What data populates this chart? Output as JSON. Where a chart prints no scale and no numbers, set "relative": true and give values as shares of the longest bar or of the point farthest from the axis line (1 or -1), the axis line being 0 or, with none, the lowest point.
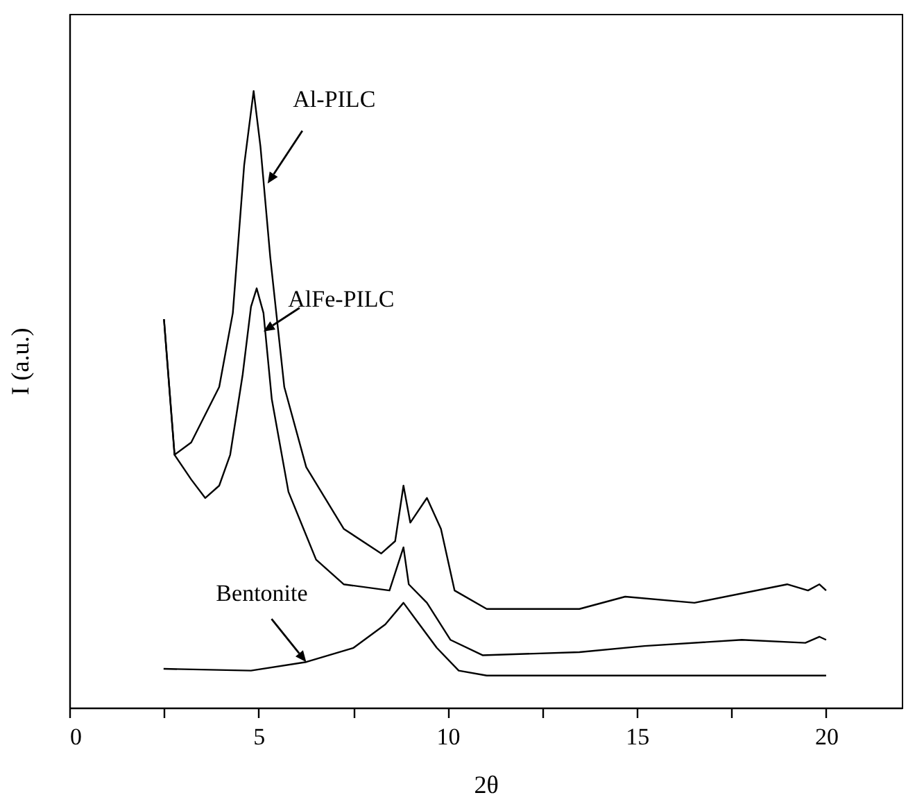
{
  "chart_data": {
    "type": "line",
    "relative": true,
    "xlabel": "2θ",
    "ylabel": "I (a.u.)",
    "xlim": [
      0,
      22
    ],
    "xticks": [
      0,
      {
        "value": 2.5,
        "label": null
      },
      5,
      {
        "value": 7.5,
        "label": null
      },
      10,
      {
        "value": 12.5,
        "label": null
      },
      15,
      {
        "value": 17.5,
        "label": null
      },
      20
    ],
    "grid": false,
    "marker": "none",
    "line_style": "solid",
    "series": [
      {
        "color": "#000000",
        "x": [
          2.5,
          2.78,
          3.22,
          3.96,
          4.32,
          4.62,
          4.87,
          5.05,
          5.31,
          5.68,
          6.26,
          7.25,
          8.24,
          8.61,
          8.83,
          9.01,
          9.45,
          9.82,
          10.18,
          11.03,
          13.48,
          14.69,
          16.52,
          18.97,
          19.52,
          19.82,
          20.0
        ],
        "values": [
          0.63,
          0.41,
          0.43,
          0.52,
          0.64,
          0.88,
          1.0,
          0.91,
          0.73,
          0.52,
          0.39,
          0.29,
          0.25,
          0.27,
          0.36,
          0.3,
          0.34,
          0.29,
          0.19,
          0.16,
          0.16,
          0.18,
          0.17,
          0.2,
          0.19,
          0.2,
          0.19
        ]
      },
      {
        "color": "#000000",
        "x": [
          2.5,
          2.78,
          3.22,
          3.59,
          3.96,
          4.25,
          4.58,
          4.8,
          4.95,
          5.13,
          5.35,
          5.79,
          6.52,
          7.25,
          8.46,
          8.83,
          8.97,
          9.45,
          10.07,
          10.92,
          13.48,
          15.2,
          17.77,
          19.45,
          19.82,
          20.0
        ],
        "values": [
          0.63,
          0.41,
          0.37,
          0.34,
          0.36,
          0.41,
          0.54,
          0.65,
          0.68,
          0.64,
          0.5,
          0.35,
          0.24,
          0.2,
          0.19,
          0.26,
          0.2,
          0.17,
          0.11,
          0.085,
          0.09,
          0.1,
          0.11,
          0.105,
          0.115,
          0.11
        ]
      },
      {
        "color": "#000000",
        "x": [
          2.49,
          4.8,
          6.26,
          7.51,
          8.35,
          8.83,
          9.19,
          9.71,
          10.29,
          11.03,
          15.31,
          20.0
        ],
        "values": [
          0.063,
          0.06,
          0.074,
          0.097,
          0.135,
          0.17,
          0.14,
          0.097,
          0.06,
          0.052,
          0.052,
          0.052
        ]
      }
    ],
    "annotations": [
      {
        "text": "Al-PILC",
        "x": 5.24,
        "y": 0.85
      },
      {
        "text": "AlFe-PILC",
        "x": 5.13,
        "y": 0.61
      },
      {
        "text": "Bentonite",
        "x": 6.26,
        "y": 0.074
      }
    ]
  }
}
